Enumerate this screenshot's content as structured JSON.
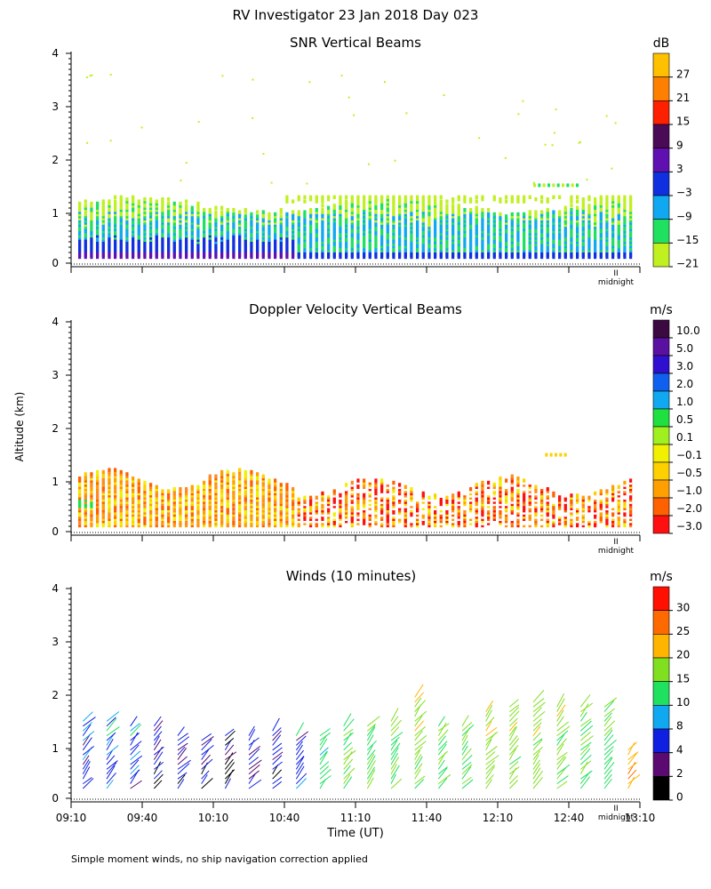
{
  "header": {
    "title": "RV Investigator  23 Jan 2018 Day 023"
  },
  "shared": {
    "ylabel": "Altitude (km)",
    "xlabel": "Time (UT)",
    "y_ticks": [
      "0",
      "1",
      "2",
      "3",
      "4"
    ],
    "x_ticks": [
      "09:10",
      "09:40",
      "10:10",
      "10:40",
      "11:10",
      "11:40",
      "12:10",
      "12:40",
      "13:10"
    ],
    "midnight_label": "midnight",
    "midnight_mark": "II"
  },
  "footer": {
    "note": "Simple moment winds, no ship navigation correction applied"
  },
  "chart_data": [
    {
      "type": "heatmap",
      "title": "SNR Vertical Beams",
      "units": "dB",
      "xlim_minutes": [
        0,
        240
      ],
      "ylim_km": [
        0,
        4
      ],
      "colorbar": {
        "labels": [
          "27",
          "21",
          "15",
          "9",
          "3",
          "−3",
          "−9",
          "−15",
          "−21"
        ],
        "colors": [
          "#ffc000",
          "#ff8000",
          "#ff2000",
          "#4a0a55",
          "#6010b0",
          "#1030e0",
          "#10a8f0",
          "#20e060",
          "#c0f020"
        ]
      },
      "layers": [
        {
          "label": "low SNR (about -21 dB) cloud-top band",
          "altitude_km": [
            0.2,
            1.3
          ],
          "color": "#c0f020"
        },
        {
          "label": "-15 dB",
          "altitude_km": [
            0.2,
            1.05
          ],
          "color": "#20e060"
        },
        {
          "label": "-9 dB",
          "altitude_km": [
            0.2,
            0.8
          ],
          "color": "#10a8f0"
        },
        {
          "label": "-3 dB",
          "altitude_km": [
            0.2,
            0.45
          ],
          "color": "#1030e0"
        },
        {
          "label": "3 dB",
          "altitude_km": [
            0.2,
            0.3
          ],
          "color": "#6010b0"
        }
      ],
      "feature": {
        "label": "elevated layer near 12:30",
        "altitude_km": 1.52,
        "time_minutes": [
          195,
          215
        ]
      }
    },
    {
      "type": "heatmap",
      "title": "Doppler Velocity Vertical Beams",
      "units": "m/s",
      "xlim_minutes": [
        0,
        240
      ],
      "ylim_km": [
        0,
        4
      ],
      "colorbar": {
        "labels": [
          "10.0",
          "5.0",
          "3.0",
          "2.0",
          "1.0",
          "0.5",
          "0.1",
          "−0.1",
          "−0.5",
          "−1.0",
          "−2.0",
          "−3.0"
        ],
        "colors": [
          "#3a0a40",
          "#5a10a0",
          "#3010d0",
          "#1060f0",
          "#10a8f0",
          "#20e040",
          "#a0f020",
          "#f0f000",
          "#ffd000",
          "#ffa000",
          "#ff6000",
          "#ff1010"
        ]
      },
      "layers": [
        {
          "label": "cloud layer, mostly -0.5 to -2.0 m/s",
          "altitude_km": [
            0.2,
            1.15
          ],
          "time_minutes": [
            0,
            235
          ]
        },
        {
          "label": "strong downward (-3.0 m/s) after 10:45",
          "time_minutes": [
            95,
            235
          ]
        }
      ],
      "feature": {
        "label": "small elevated echo",
        "altitude_km": 1.5,
        "time_minutes": [
          200,
          210
        ]
      }
    },
    {
      "type": "wind-barbs",
      "title": "Winds (10 minutes)",
      "units": "m/s",
      "xlim_minutes": [
        0,
        240
      ],
      "ylim_km": [
        0,
        4
      ],
      "colorbar": {
        "labels": [
          "30",
          "25",
          "20",
          "15",
          "10",
          "8",
          "4",
          "2",
          "0"
        ],
        "colors": [
          "#ff1000",
          "#ff6a00",
          "#ffb400",
          "#80e020",
          "#20e060",
          "#10a8f0",
          "#1020e0",
          "#5a0a70",
          "#000000"
        ]
      },
      "profiles": [
        {
          "time": "09:15",
          "top_km": 1.6,
          "speed": 6
        },
        {
          "time": "09:25",
          "top_km": 1.6,
          "speed": 7
        },
        {
          "time": "09:35",
          "top_km": 1.5,
          "speed": 6
        },
        {
          "time": "09:45",
          "top_km": 1.5,
          "speed": 4
        },
        {
          "time": "09:55",
          "top_km": 1.3,
          "speed": 4
        },
        {
          "time": "10:05",
          "top_km": 1.2,
          "speed": 3
        },
        {
          "time": "10:15",
          "top_km": 1.3,
          "speed": 3
        },
        {
          "time": "10:25",
          "top_km": 1.3,
          "speed": 4
        },
        {
          "time": "10:35",
          "top_km": 1.4,
          "speed": 4
        },
        {
          "time": "10:45",
          "top_km": 1.3,
          "speed": 6
        },
        {
          "time": "10:55",
          "top_km": 1.3,
          "speed": 12
        },
        {
          "time": "11:05",
          "top_km": 1.5,
          "speed": 14
        },
        {
          "time": "11:15",
          "top_km": 1.5,
          "speed": 14
        },
        {
          "time": "11:25",
          "top_km": 1.6,
          "speed": 15
        },
        {
          "time": "11:35",
          "top_km": 2.0,
          "speed": 17
        },
        {
          "time": "11:45",
          "top_km": 1.5,
          "speed": 15
        },
        {
          "time": "11:55",
          "top_km": 1.5,
          "speed": 15
        },
        {
          "time": "12:05",
          "top_km": 1.7,
          "speed": 18
        },
        {
          "time": "12:15",
          "top_km": 1.8,
          "speed": 17
        },
        {
          "time": "12:25",
          "top_km": 1.9,
          "speed": 17
        },
        {
          "time": "12:35",
          "top_km": 1.8,
          "speed": 16
        },
        {
          "time": "12:45",
          "top_km": 1.8,
          "speed": 14
        },
        {
          "time": "12:55",
          "top_km": 1.8,
          "speed": 13
        },
        {
          "time": "13:05",
          "top_km": 1.0,
          "speed": 25
        }
      ]
    }
  ]
}
